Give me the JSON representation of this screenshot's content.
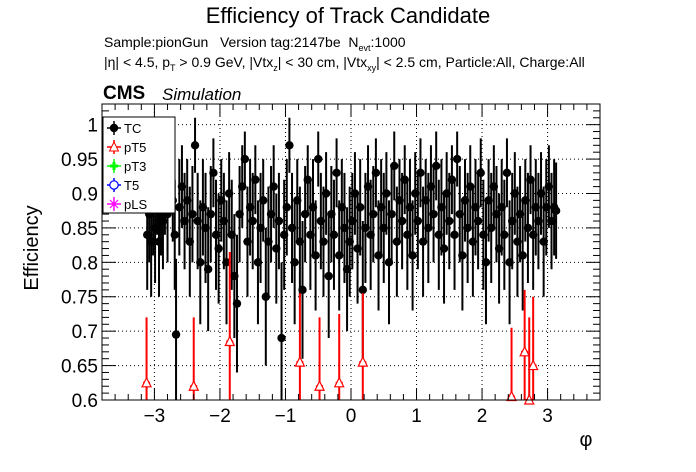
{
  "header": {
    "title": "Efficiency of Track Candidate",
    "subtitle_1": "Sample:pionGun   Version tag:2147be  N_evt:1000",
    "subtitle_2": "|η| < 4.5, p_T > 0.9 GeV, |Vtx_z| < 30 cm, |Vtx_xy| < 2.5 cm, Particle:All, Charge:All",
    "cms": "CMS",
    "simulation": "Simulation"
  },
  "chart_data": {
    "type": "scatter",
    "title": "Efficiency of Track Candidate",
    "xlabel": "φ",
    "ylabel": "Efficiency",
    "xlim": [
      -3.8,
      3.8
    ],
    "ylim": [
      0.6,
      1.03
    ],
    "xticks": [
      -3,
      -2,
      -1,
      0,
      1,
      2,
      3
    ],
    "yticks": [
      0.6,
      0.65,
      0.7,
      0.75,
      0.8,
      0.85,
      0.9,
      0.95,
      1
    ],
    "xtick_labels": [
      "−3",
      "−2",
      "−1",
      "0",
      "1",
      "2",
      "3"
    ],
    "ytick_labels": [
      "0.6",
      "0.65",
      "0.7",
      "0.75",
      "0.8",
      "0.85",
      "0.9",
      "0.95",
      "1"
    ],
    "grid": true,
    "legend_position": "top-left",
    "legend": [
      {
        "name": "TC",
        "color": "#000000",
        "marker": "circle-filled"
      },
      {
        "name": "pT5",
        "color": "#ff0000",
        "marker": "triangle-open"
      },
      {
        "name": "pT3",
        "color": "#00ff00",
        "marker": "cross"
      },
      {
        "name": "T5",
        "color": "#0000ff",
        "marker": "circle-open"
      },
      {
        "name": "pLS",
        "color": "#ff00ff",
        "marker": "star"
      }
    ],
    "series": [
      {
        "name": "TC",
        "color": "#000000",
        "marker": "circle-filled",
        "points": [
          {
            "x": -3.11,
            "y": 0.84,
            "err": 0.08
          },
          {
            "x": -3.08,
            "y": 0.87,
            "err": 0.07
          },
          {
            "x": -3.05,
            "y": 0.83,
            "err": 0.08
          },
          {
            "x": -3.02,
            "y": 0.88,
            "err": 0.07
          },
          {
            "x": -2.99,
            "y": 0.85,
            "err": 0.08
          },
          {
            "x": -2.96,
            "y": 0.9,
            "err": 0.06
          },
          {
            "x": -2.93,
            "y": 0.83,
            "err": 0.08
          },
          {
            "x": -2.9,
            "y": 0.88,
            "err": 0.07
          },
          {
            "x": -2.87,
            "y": 0.86,
            "err": 0.07
          },
          {
            "x": -2.84,
            "y": 0.9,
            "err": 0.06
          },
          {
            "x": -2.8,
            "y": 0.87,
            "err": 0.07
          },
          {
            "x": -2.76,
            "y": 0.93,
            "err": 0.05
          },
          {
            "x": -2.72,
            "y": 0.89,
            "err": 0.06
          },
          {
            "x": -2.69,
            "y": 0.84,
            "err": 0.08
          },
          {
            "x": -2.67,
            "y": 0.695,
            "err": 0.11
          },
          {
            "x": -2.62,
            "y": 0.88,
            "err": 0.07
          },
          {
            "x": -2.58,
            "y": 0.91,
            "err": 0.06
          },
          {
            "x": -2.54,
            "y": 0.86,
            "err": 0.07
          },
          {
            "x": -2.5,
            "y": 0.89,
            "err": 0.06
          },
          {
            "x": -2.46,
            "y": 0.83,
            "err": 0.08
          },
          {
            "x": -2.42,
            "y": 0.87,
            "err": 0.07
          },
          {
            "x": -2.38,
            "y": 0.97,
            "err": 0.04
          },
          {
            "x": -2.34,
            "y": 0.86,
            "err": 0.07
          },
          {
            "x": -2.3,
            "y": 0.8,
            "err": 0.09
          },
          {
            "x": -2.26,
            "y": 0.88,
            "err": 0.07
          },
          {
            "x": -2.22,
            "y": 0.85,
            "err": 0.08
          },
          {
            "x": -2.18,
            "y": 0.79,
            "err": 0.09
          },
          {
            "x": -2.14,
            "y": 0.87,
            "err": 0.07
          },
          {
            "x": -2.1,
            "y": 0.93,
            "err": 0.05
          },
          {
            "x": -2.06,
            "y": 0.84,
            "err": 0.08
          },
          {
            "x": -2.02,
            "y": 0.82,
            "err": 0.08
          },
          {
            "x": -1.98,
            "y": 0.89,
            "err": 0.06
          },
          {
            "x": -1.94,
            "y": 0.86,
            "err": 0.07
          },
          {
            "x": -1.9,
            "y": 0.8,
            "err": 0.09
          },
          {
            "x": -1.86,
            "y": 0.9,
            "err": 0.06
          },
          {
            "x": -1.82,
            "y": 0.84,
            "err": 0.08
          },
          {
            "x": -1.78,
            "y": 0.78,
            "err": 0.09
          },
          {
            "x": -1.74,
            "y": 0.74,
            "err": 0.1
          },
          {
            "x": -1.7,
            "y": 0.87,
            "err": 0.07
          },
          {
            "x": -1.66,
            "y": 0.91,
            "err": 0.06
          },
          {
            "x": -1.62,
            "y": 0.95,
            "err": 0.04
          },
          {
            "x": -1.58,
            "y": 0.83,
            "err": 0.08
          },
          {
            "x": -1.54,
            "y": 0.88,
            "err": 0.07
          },
          {
            "x": -1.5,
            "y": 0.86,
            "err": 0.07
          },
          {
            "x": -1.46,
            "y": 0.92,
            "err": 0.05
          },
          {
            "x": -1.42,
            "y": 0.8,
            "err": 0.09
          },
          {
            "x": -1.38,
            "y": 0.85,
            "err": 0.08
          },
          {
            "x": -1.34,
            "y": 0.89,
            "err": 0.06
          },
          {
            "x": -1.3,
            "y": 0.75,
            "err": 0.1
          },
          {
            "x": -1.26,
            "y": 0.83,
            "err": 0.08
          },
          {
            "x": -1.22,
            "y": 0.87,
            "err": 0.07
          },
          {
            "x": -1.18,
            "y": 0.91,
            "err": 0.06
          },
          {
            "x": -1.14,
            "y": 0.82,
            "err": 0.08
          },
          {
            "x": -1.1,
            "y": 0.86,
            "err": 0.07
          },
          {
            "x": -1.06,
            "y": 0.69,
            "err": 0.11
          },
          {
            "x": -1.02,
            "y": 0.84,
            "err": 0.08
          },
          {
            "x": -0.98,
            "y": 0.88,
            "err": 0.07
          },
          {
            "x": -0.94,
            "y": 0.97,
            "err": 0.04
          },
          {
            "x": -0.9,
            "y": 0.85,
            "err": 0.08
          },
          {
            "x": -0.86,
            "y": 0.8,
            "err": 0.09
          },
          {
            "x": -0.82,
            "y": 0.89,
            "err": 0.06
          },
          {
            "x": -0.78,
            "y": 0.83,
            "err": 0.08
          },
          {
            "x": -0.74,
            "y": 0.76,
            "err": 0.1
          },
          {
            "x": -0.7,
            "y": 0.87,
            "err": 0.07
          },
          {
            "x": -0.66,
            "y": 0.92,
            "err": 0.05
          },
          {
            "x": -0.62,
            "y": 0.84,
            "err": 0.08
          },
          {
            "x": -0.58,
            "y": 0.88,
            "err": 0.07
          },
          {
            "x": -0.54,
            "y": 0.81,
            "err": 0.08
          },
          {
            "x": -0.5,
            "y": 0.95,
            "err": 0.04
          },
          {
            "x": -0.46,
            "y": 0.86,
            "err": 0.07
          },
          {
            "x": -0.42,
            "y": 0.83,
            "err": 0.08
          },
          {
            "x": -0.38,
            "y": 0.9,
            "err": 0.06
          },
          {
            "x": -0.34,
            "y": 0.78,
            "err": 0.09
          },
          {
            "x": -0.3,
            "y": 0.87,
            "err": 0.07
          },
          {
            "x": -0.26,
            "y": 0.84,
            "err": 0.08
          },
          {
            "x": -0.22,
            "y": 0.93,
            "err": 0.05
          },
          {
            "x": -0.18,
            "y": 0.81,
            "err": 0.08
          },
          {
            "x": -0.14,
            "y": 0.88,
            "err": 0.07
          },
          {
            "x": -0.1,
            "y": 0.85,
            "err": 0.08
          },
          {
            "x": -0.06,
            "y": 0.79,
            "err": 0.09
          },
          {
            "x": -0.02,
            "y": 0.83,
            "err": 0.08
          },
          {
            "x": 0.02,
            "y": 0.86,
            "err": 0.07
          },
          {
            "x": 0.06,
            "y": 0.9,
            "err": 0.06
          },
          {
            "x": 0.1,
            "y": 0.82,
            "err": 0.08
          },
          {
            "x": 0.14,
            "y": 0.88,
            "err": 0.07
          },
          {
            "x": 0.18,
            "y": 0.76,
            "err": 0.1
          },
          {
            "x": 0.22,
            "y": 0.85,
            "err": 0.08
          },
          {
            "x": 0.26,
            "y": 0.91,
            "err": 0.06
          },
          {
            "x": 0.3,
            "y": 0.84,
            "err": 0.08
          },
          {
            "x": 0.34,
            "y": 0.87,
            "err": 0.07
          },
          {
            "x": 0.38,
            "y": 0.93,
            "err": 0.05
          },
          {
            "x": 0.42,
            "y": 0.81,
            "err": 0.08
          },
          {
            "x": 0.46,
            "y": 0.88,
            "err": 0.07
          },
          {
            "x": 0.5,
            "y": 0.85,
            "err": 0.08
          },
          {
            "x": 0.54,
            "y": 0.9,
            "err": 0.06
          },
          {
            "x": 0.58,
            "y": 0.8,
            "err": 0.09
          },
          {
            "x": 0.62,
            "y": 0.87,
            "err": 0.07
          },
          {
            "x": 0.66,
            "y": 0.94,
            "err": 0.05
          },
          {
            "x": 0.7,
            "y": 0.83,
            "err": 0.08
          },
          {
            "x": 0.74,
            "y": 0.89,
            "err": 0.06
          },
          {
            "x": 0.78,
            "y": 0.86,
            "err": 0.07
          },
          {
            "x": 0.82,
            "y": 0.92,
            "err": 0.05
          },
          {
            "x": 0.86,
            "y": 0.84,
            "err": 0.08
          },
          {
            "x": 0.9,
            "y": 0.88,
            "err": 0.07
          },
          {
            "x": 0.94,
            "y": 0.81,
            "err": 0.08
          },
          {
            "x": 0.98,
            "y": 0.9,
            "err": 0.06
          },
          {
            "x": 1.02,
            "y": 0.86,
            "err": 0.07
          },
          {
            "x": 1.06,
            "y": 0.93,
            "err": 0.05
          },
          {
            "x": 1.1,
            "y": 0.83,
            "err": 0.08
          },
          {
            "x": 1.14,
            "y": 0.89,
            "err": 0.06
          },
          {
            "x": 1.18,
            "y": 0.85,
            "err": 0.08
          },
          {
            "x": 1.22,
            "y": 0.91,
            "err": 0.06
          },
          {
            "x": 1.26,
            "y": 0.87,
            "err": 0.07
          },
          {
            "x": 1.3,
            "y": 0.94,
            "err": 0.05
          },
          {
            "x": 1.34,
            "y": 0.84,
            "err": 0.08
          },
          {
            "x": 1.38,
            "y": 0.88,
            "err": 0.07
          },
          {
            "x": 1.42,
            "y": 0.82,
            "err": 0.08
          },
          {
            "x": 1.46,
            "y": 0.9,
            "err": 0.06
          },
          {
            "x": 1.5,
            "y": 0.86,
            "err": 0.07
          },
          {
            "x": 1.54,
            "y": 0.92,
            "err": 0.05
          },
          {
            "x": 1.58,
            "y": 0.84,
            "err": 0.08
          },
          {
            "x": 1.62,
            "y": 0.95,
            "err": 0.04
          },
          {
            "x": 1.66,
            "y": 0.87,
            "err": 0.07
          },
          {
            "x": 1.7,
            "y": 0.81,
            "err": 0.08
          },
          {
            "x": 1.74,
            "y": 0.89,
            "err": 0.06
          },
          {
            "x": 1.78,
            "y": 0.85,
            "err": 0.08
          },
          {
            "x": 1.82,
            "y": 0.91,
            "err": 0.06
          },
          {
            "x": 1.86,
            "y": 0.83,
            "err": 0.08
          },
          {
            "x": 1.9,
            "y": 0.88,
            "err": 0.07
          },
          {
            "x": 1.94,
            "y": 0.86,
            "err": 0.07
          },
          {
            "x": 1.98,
            "y": 0.93,
            "err": 0.05
          },
          {
            "x": 2.02,
            "y": 0.84,
            "err": 0.08
          },
          {
            "x": 2.06,
            "y": 0.8,
            "err": 0.09
          },
          {
            "x": 2.1,
            "y": 0.89,
            "err": 0.06
          },
          {
            "x": 2.14,
            "y": 0.85,
            "err": 0.08
          },
          {
            "x": 2.18,
            "y": 0.91,
            "err": 0.06
          },
          {
            "x": 2.22,
            "y": 0.87,
            "err": 0.07
          },
          {
            "x": 2.26,
            "y": 0.82,
            "err": 0.08
          },
          {
            "x": 2.3,
            "y": 0.88,
            "err": 0.07
          },
          {
            "x": 2.34,
            "y": 0.84,
            "err": 0.08
          },
          {
            "x": 2.38,
            "y": 0.93,
            "err": 0.05
          },
          {
            "x": 2.42,
            "y": 0.8,
            "err": 0.09
          },
          {
            "x": 2.46,
            "y": 0.86,
            "err": 0.07
          },
          {
            "x": 2.5,
            "y": 0.9,
            "err": 0.06
          },
          {
            "x": 2.54,
            "y": 0.83,
            "err": 0.08
          },
          {
            "x": 2.58,
            "y": 0.87,
            "err": 0.07
          },
          {
            "x": 2.62,
            "y": 0.81,
            "err": 0.08
          },
          {
            "x": 2.66,
            "y": 0.89,
            "err": 0.06
          },
          {
            "x": 2.7,
            "y": 0.85,
            "err": 0.08
          },
          {
            "x": 2.74,
            "y": 0.92,
            "err": 0.05
          },
          {
            "x": 2.78,
            "y": 0.84,
            "err": 0.08
          },
          {
            "x": 2.82,
            "y": 0.88,
            "err": 0.07
          },
          {
            "x": 2.86,
            "y": 0.86,
            "err": 0.07
          },
          {
            "x": 2.9,
            "y": 0.9,
            "err": 0.06
          },
          {
            "x": 2.94,
            "y": 0.83,
            "err": 0.08
          },
          {
            "x": 2.98,
            "y": 0.88,
            "err": 0.07
          },
          {
            "x": 3.02,
            "y": 0.91,
            "err": 0.06
          },
          {
            "x": 3.06,
            "y": 0.86,
            "err": 0.07
          },
          {
            "x": 3.1,
            "y": 0.88,
            "err": 0.07
          },
          {
            "x": 3.13,
            "y": 0.875,
            "err": 0.07
          }
        ]
      },
      {
        "name": "pT5",
        "color": "#ff0000",
        "marker": "triangle-open",
        "points": [
          {
            "x": -3.12,
            "y": 0.625,
            "err": 0.095
          },
          {
            "x": -2.4,
            "y": 0.62,
            "err": 0.1
          },
          {
            "x": -1.85,
            "y": 0.685,
            "err": 0.13
          },
          {
            "x": -0.78,
            "y": 0.655,
            "err": 0.1
          },
          {
            "x": -0.48,
            "y": 0.62,
            "err": 0.1
          },
          {
            "x": -0.18,
            "y": 0.625,
            "err": 0.1
          },
          {
            "x": 0.18,
            "y": 0.655,
            "err": 0.1
          },
          {
            "x": 2.45,
            "y": 0.605,
            "err": 0.1
          },
          {
            "x": 2.65,
            "y": 0.67,
            "err": 0.09
          },
          {
            "x": 2.72,
            "y": 0.6,
            "err": 0.12
          },
          {
            "x": 2.78,
            "y": 0.65,
            "err": 0.1
          }
        ]
      },
      {
        "name": "pT3",
        "color": "#00ff00",
        "marker": "cross",
        "points": []
      },
      {
        "name": "T5",
        "color": "#0000ff",
        "marker": "circle-open",
        "points": []
      },
      {
        "name": "pLS",
        "color": "#ff00ff",
        "marker": "star",
        "points": []
      }
    ]
  }
}
